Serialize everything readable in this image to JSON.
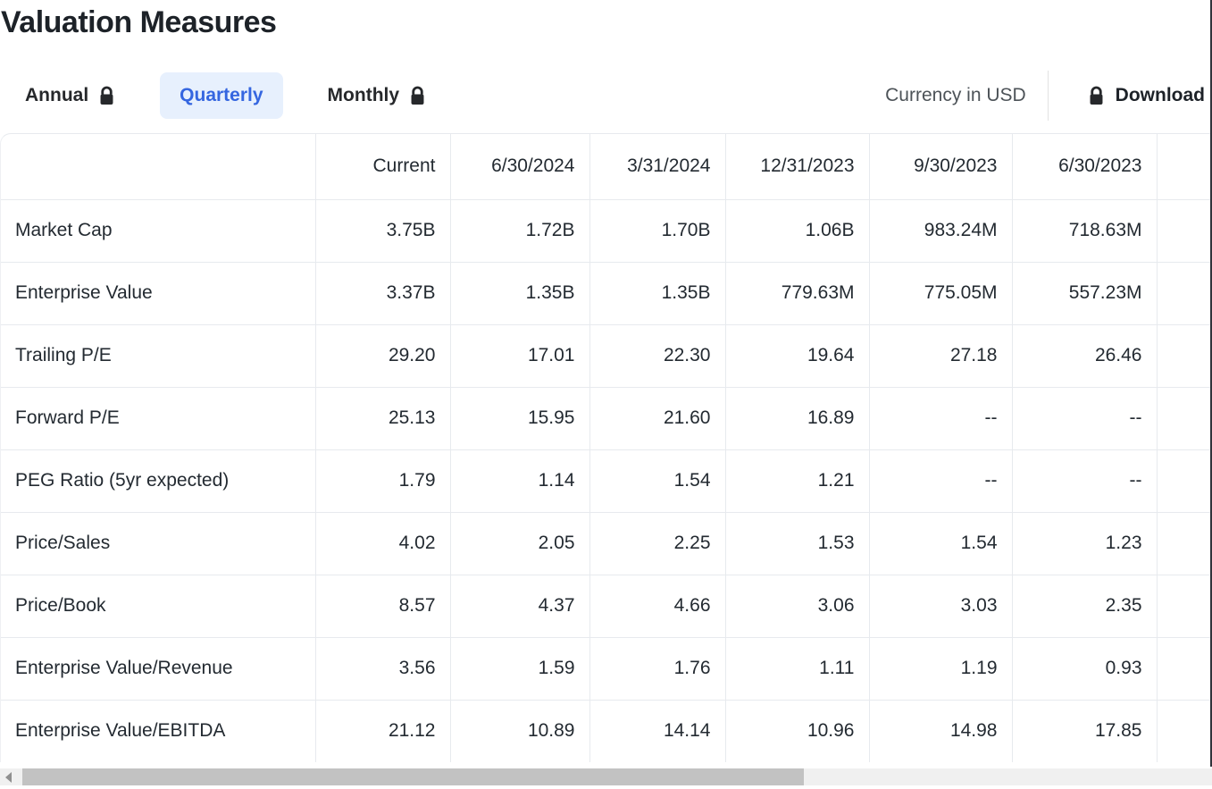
{
  "page": {
    "title": "Valuation Measures"
  },
  "toolbar": {
    "tabs": [
      {
        "label": "Annual",
        "locked": true,
        "active": false
      },
      {
        "label": "Quarterly",
        "locked": false,
        "active": true
      },
      {
        "label": "Monthly",
        "locked": true,
        "active": false
      }
    ],
    "currency_label": "Currency in USD",
    "download_label": "Download",
    "download_locked": true
  },
  "table": {
    "columns": [
      "Current",
      "6/30/2024",
      "3/31/2024",
      "12/31/2023",
      "9/30/2023",
      "6/30/2023"
    ],
    "rows": [
      {
        "label": "Market Cap",
        "values": [
          "3.75B",
          "1.72B",
          "1.70B",
          "1.06B",
          "983.24M",
          "718.63M"
        ]
      },
      {
        "label": "Enterprise Value",
        "values": [
          "3.37B",
          "1.35B",
          "1.35B",
          "779.63M",
          "775.05M",
          "557.23M"
        ]
      },
      {
        "label": "Trailing P/E",
        "values": [
          "29.20",
          "17.01",
          "22.30",
          "19.64",
          "27.18",
          "26.46"
        ]
      },
      {
        "label": "Forward P/E",
        "values": [
          "25.13",
          "15.95",
          "21.60",
          "16.89",
          "--",
          "--"
        ]
      },
      {
        "label": "PEG Ratio (5yr expected)",
        "values": [
          "1.79",
          "1.14",
          "1.54",
          "1.21",
          "--",
          "--"
        ]
      },
      {
        "label": "Price/Sales",
        "values": [
          "4.02",
          "2.05",
          "2.25",
          "1.53",
          "1.54",
          "1.23"
        ]
      },
      {
        "label": "Price/Book",
        "values": [
          "8.57",
          "4.37",
          "4.66",
          "3.06",
          "3.03",
          "2.35"
        ]
      },
      {
        "label": "Enterprise Value/Revenue",
        "values": [
          "3.56",
          "1.59",
          "1.76",
          "1.11",
          "1.19",
          "0.93"
        ]
      },
      {
        "label": "Enterprise Value/EBITDA",
        "values": [
          "21.12",
          "10.89",
          "14.14",
          "10.96",
          "14.98",
          "17.85"
        ]
      }
    ]
  },
  "colors": {
    "accent_blue": "#3566e0",
    "active_tab_bg": "#e7f0fd",
    "text_dark": "#232a31",
    "text_gray": "#4d5358",
    "table_border": "#e7eaee",
    "scrollbar_track": "#f0f0f0",
    "scrollbar_thumb": "#c2c2c2"
  }
}
